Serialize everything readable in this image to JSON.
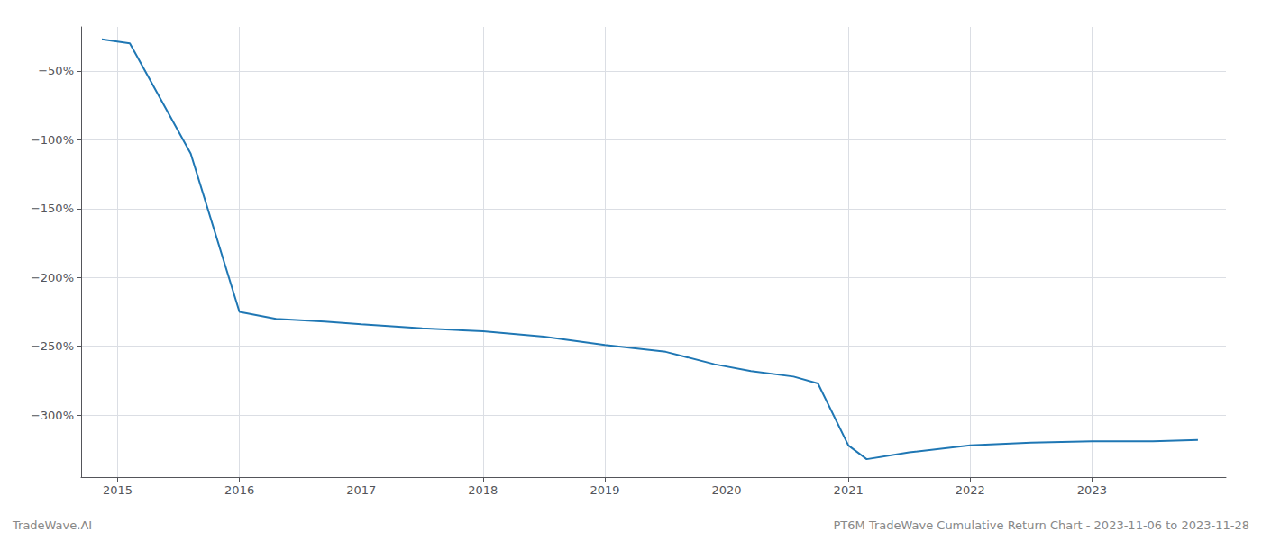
{
  "chart_data": {
    "type": "line",
    "x": [
      2014.87,
      2015.1,
      2015.6,
      2016.0,
      2016.3,
      2016.7,
      2017.0,
      2017.5,
      2018.0,
      2018.5,
      2019.0,
      2019.5,
      2019.9,
      2020.2,
      2020.55,
      2020.75,
      2021.0,
      2021.15,
      2021.5,
      2022.0,
      2022.5,
      2023.0,
      2023.5,
      2023.87
    ],
    "values": [
      -27,
      -30,
      -110,
      -225,
      -230,
      -232,
      -234,
      -237,
      -239,
      -243,
      -249,
      -254,
      -263,
      -268,
      -272,
      -277,
      -322,
      -332,
      -327,
      -322,
      -320,
      -319,
      -319,
      -318
    ],
    "color": "#1f77b4",
    "xlim": [
      2014.7,
      2024.1
    ],
    "xticks": [
      2015,
      2016,
      2017,
      2018,
      2019,
      2020,
      2021,
      2022,
      2023
    ],
    "ylim": [
      -345,
      -18
    ],
    "yticks": [
      {
        "value": -50,
        "label": "−50%"
      },
      {
        "value": -100,
        "label": "−100%"
      },
      {
        "value": -150,
        "label": "−150%"
      },
      {
        "value": -200,
        "label": "−200%"
      },
      {
        "value": -250,
        "label": "−250%"
      },
      {
        "value": -300,
        "label": "−300%"
      }
    ],
    "grid": true,
    "annotations": [
      "TradeWave.AI",
      "PT6M TradeWave Cumulative Return Chart - 2023-11-06 to 2023-11-28"
    ]
  }
}
